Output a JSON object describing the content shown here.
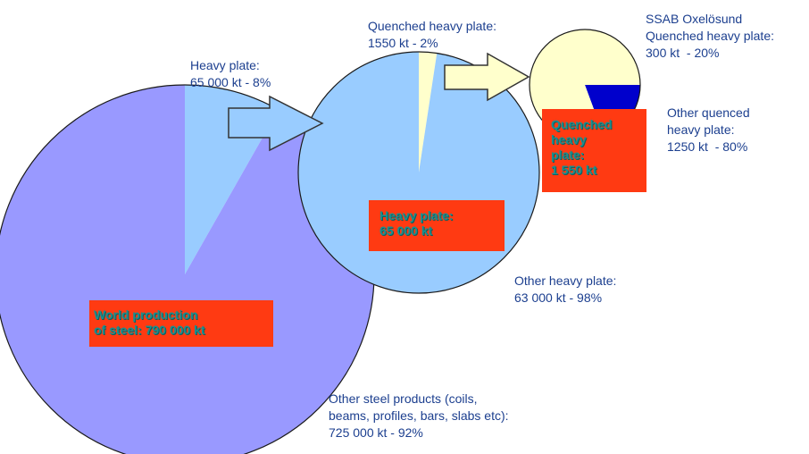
{
  "chart_data": [
    {
      "type": "pie",
      "box_label": "World production\nof steel: 790 000 kt",
      "slices": [
        {
          "label": "Heavy plate:\n65 000 kt - 8%",
          "value": 65000,
          "percent": 8,
          "color": "#99ccff"
        },
        {
          "label": "Other steel products (coils,\nbeams, profiles, bars, slabs etc):\n725 000 kt - 92%",
          "value": 725000,
          "percent": 92,
          "color": "#9999ff"
        }
      ]
    },
    {
      "type": "pie",
      "box_label": "Heavy plate:\n65 000 kt",
      "slices": [
        {
          "label": "Quenched heavy plate:\n1550 kt - 2%",
          "value": 1550,
          "percent": 2,
          "color": "#ffffcc"
        },
        {
          "label": "Other heavy plate:\n63 000 kt - 98%",
          "value": 63000,
          "percent": 98,
          "color": "#99ccff"
        }
      ]
    },
    {
      "type": "pie",
      "box_label": "Quenched\nheavy\nplate:\n1 550 kt",
      "slices": [
        {
          "label": "SSAB Oxelösund\nQuenched heavy plate:\n300 kt  - 20%",
          "value": 300,
          "percent": 20,
          "color": "#0000cc"
        },
        {
          "label": "Other quenced\nheavy plate:\n1250 kt  - 80%",
          "value": 1250,
          "percent": 80,
          "color": "#ffffcc"
        }
      ]
    }
  ],
  "colors": {
    "box_fill": "#ff3a12",
    "box_text": "#1a8f8f",
    "label_text": "#1c3f8f",
    "arrow_fill": "#99ccff",
    "arrow2_fill": "#ffffcc"
  }
}
